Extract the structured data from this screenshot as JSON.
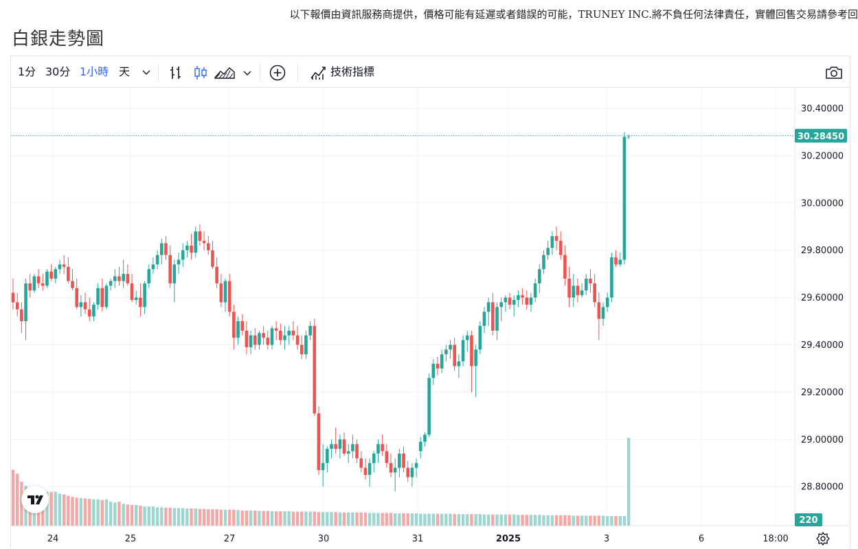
{
  "disclaimer": "以下報價由資訊服務商提供，價格可能有延遲或者錯誤的可能，TRUNEY INC.將不負任何法律責任，實體回售交易請參考回",
  "page_title": "白銀走勢圖",
  "toolbar": {
    "intervals": [
      "1分",
      "30分",
      "1小時",
      "天"
    ],
    "active_interval": "1小時",
    "indicators_label": "技術指標",
    "icons": [
      "chevron-down-icon",
      "bar-style-icon",
      "candle-style-icon",
      "area-style-icon",
      "add-circle-icon",
      "indicators-icon",
      "camera-icon"
    ]
  },
  "colors": {
    "up": "#26a69a",
    "down": "#ef5350",
    "up_volume": "#9fd5cf",
    "down_volume": "#f5a7a5",
    "grid": "#f0f3fa",
    "price_tag": "#26a69a"
  },
  "chart_data": {
    "type": "candlestick",
    "symbol_name": "白銀",
    "y_ticks": [
      "30.40000",
      "30.20000",
      "30.00000",
      "29.80000",
      "29.60000",
      "29.40000",
      "29.20000",
      "29.00000",
      "28.80000"
    ],
    "ylim": [
      28.8,
      30.4
    ],
    "x_ticks": [
      "24",
      "25",
      "27",
      "30",
      "31",
      "2025",
      "3",
      "6",
      "18:00"
    ],
    "last_price": "30.28450",
    "last_volume": "220",
    "grid": true,
    "candles": [
      [
        29.62,
        29.68,
        29.55,
        29.58
      ],
      [
        29.58,
        29.62,
        29.52,
        29.55
      ],
      [
        29.55,
        29.58,
        29.45,
        29.5
      ],
      [
        29.5,
        29.68,
        29.42,
        29.66
      ],
      [
        29.66,
        29.7,
        29.6,
        29.63
      ],
      [
        29.63,
        29.7,
        29.62,
        29.69
      ],
      [
        29.69,
        29.72,
        29.64,
        29.66
      ],
      [
        29.66,
        29.7,
        29.63,
        29.65
      ],
      [
        29.65,
        29.72,
        29.64,
        29.71
      ],
      [
        29.71,
        29.74,
        29.67,
        29.68
      ],
      [
        29.68,
        29.73,
        29.66,
        29.72
      ],
      [
        29.72,
        29.76,
        29.7,
        29.74
      ],
      [
        29.74,
        29.78,
        29.7,
        29.73
      ],
      [
        29.73,
        29.77,
        29.66,
        29.67
      ],
      [
        29.67,
        29.72,
        29.63,
        29.64
      ],
      [
        29.64,
        29.68,
        29.55,
        29.56
      ],
      [
        29.56,
        29.61,
        29.52,
        29.58
      ],
      [
        29.58,
        29.62,
        29.53,
        29.55
      ],
      [
        29.55,
        29.6,
        29.5,
        29.52
      ],
      [
        29.52,
        29.58,
        29.5,
        29.57
      ],
      [
        29.57,
        29.66,
        29.55,
        29.64
      ],
      [
        29.64,
        29.68,
        29.54,
        29.56
      ],
      [
        29.56,
        29.66,
        29.55,
        29.65
      ],
      [
        29.65,
        29.68,
        29.63,
        29.67
      ],
      [
        29.67,
        29.72,
        29.64,
        29.69
      ],
      [
        29.69,
        29.73,
        29.65,
        29.67
      ],
      [
        29.67,
        29.76,
        29.64,
        29.7
      ],
      [
        29.7,
        29.74,
        29.65,
        29.66
      ],
      [
        29.66,
        29.7,
        29.58,
        29.59
      ],
      [
        29.59,
        29.63,
        29.57,
        29.6
      ],
      [
        29.6,
        29.66,
        29.52,
        29.56
      ],
      [
        29.56,
        29.67,
        29.53,
        29.66
      ],
      [
        29.66,
        29.74,
        29.64,
        29.72
      ],
      [
        29.72,
        29.77,
        29.7,
        29.74
      ],
      [
        29.74,
        29.8,
        29.72,
        29.78
      ],
      [
        29.78,
        29.85,
        29.74,
        29.83
      ],
      [
        29.83,
        29.86,
        29.76,
        29.78
      ],
      [
        29.78,
        29.82,
        29.64,
        29.66
      ],
      [
        29.66,
        29.76,
        29.58,
        29.74
      ],
      [
        29.74,
        29.79,
        29.7,
        29.76
      ],
      [
        29.76,
        29.83,
        29.73,
        29.8
      ],
      [
        29.8,
        29.84,
        29.77,
        29.82
      ],
      [
        29.82,
        29.87,
        29.76,
        29.79
      ],
      [
        29.79,
        29.9,
        29.77,
        29.88
      ],
      [
        29.88,
        29.91,
        29.82,
        29.84
      ],
      [
        29.84,
        29.88,
        29.8,
        29.83
      ],
      [
        29.83,
        29.86,
        29.78,
        29.8
      ],
      [
        29.8,
        29.84,
        29.72,
        29.73
      ],
      [
        29.73,
        29.77,
        29.64,
        29.66
      ],
      [
        29.66,
        29.7,
        29.56,
        29.58
      ],
      [
        29.58,
        29.68,
        29.54,
        29.67
      ],
      [
        29.67,
        29.7,
        29.52,
        29.54
      ],
      [
        29.54,
        29.57,
        29.38,
        29.43
      ],
      [
        29.43,
        29.52,
        29.4,
        29.5
      ],
      [
        29.5,
        29.53,
        29.44,
        29.46
      ],
      [
        29.46,
        29.5,
        29.36,
        29.39
      ],
      [
        29.39,
        29.46,
        29.36,
        29.44
      ],
      [
        29.44,
        29.47,
        29.38,
        29.4
      ],
      [
        29.4,
        29.46,
        29.38,
        29.45
      ],
      [
        29.45,
        29.48,
        29.4,
        29.43
      ],
      [
        29.43,
        29.46,
        29.38,
        29.4
      ],
      [
        29.4,
        29.48,
        29.38,
        29.47
      ],
      [
        29.47,
        29.5,
        29.42,
        29.46
      ],
      [
        29.46,
        29.49,
        29.4,
        29.42
      ],
      [
        29.42,
        29.48,
        29.38,
        29.44
      ],
      [
        29.44,
        29.48,
        29.4,
        29.46
      ],
      [
        29.46,
        29.5,
        29.42,
        29.44
      ],
      [
        29.44,
        29.48,
        29.38,
        29.4
      ],
      [
        29.4,
        29.44,
        29.34,
        29.36
      ],
      [
        29.36,
        29.46,
        29.34,
        29.44
      ],
      [
        29.44,
        29.5,
        29.42,
        29.48
      ],
      [
        29.48,
        29.51,
        29.1,
        29.11
      ],
      [
        29.11,
        29.14,
        28.85,
        28.87
      ],
      [
        28.87,
        28.98,
        28.8,
        28.9
      ],
      [
        28.9,
        28.97,
        28.86,
        28.96
      ],
      [
        28.96,
        29.0,
        28.92,
        28.98
      ],
      [
        28.98,
        29.05,
        28.94,
        28.96
      ],
      [
        28.96,
        29.02,
        28.92,
        29.0
      ],
      [
        29.0,
        29.03,
        28.93,
        28.94
      ],
      [
        28.94,
        28.98,
        28.9,
        28.95
      ],
      [
        28.95,
        29.02,
        28.92,
        28.98
      ],
      [
        28.98,
        29.0,
        28.9,
        28.92
      ],
      [
        28.92,
        28.95,
        28.86,
        28.88
      ],
      [
        28.88,
        28.92,
        28.83,
        28.85
      ],
      [
        28.85,
        28.92,
        28.8,
        28.9
      ],
      [
        28.9,
        28.95,
        28.86,
        28.94
      ],
      [
        28.94,
        29.0,
        28.9,
        28.98
      ],
      [
        28.98,
        29.02,
        28.93,
        28.95
      ],
      [
        28.95,
        28.98,
        28.88,
        28.9
      ],
      [
        28.9,
        28.94,
        28.84,
        28.86
      ],
      [
        28.86,
        28.92,
        28.78,
        28.88
      ],
      [
        28.88,
        28.96,
        28.84,
        28.94
      ],
      [
        28.94,
        28.97,
        28.86,
        28.88
      ],
      [
        28.88,
        28.91,
        28.82,
        28.84
      ],
      [
        28.84,
        28.9,
        28.8,
        28.88
      ],
      [
        28.88,
        28.92,
        28.84,
        28.9
      ],
      [
        28.95,
        29.01,
        28.92,
        28.99
      ],
      [
        28.99,
        29.03,
        28.97,
        29.02
      ],
      [
        29.02,
        29.28,
        29.01,
        29.26
      ],
      [
        29.26,
        29.34,
        29.23,
        29.32
      ],
      [
        29.32,
        29.35,
        29.27,
        29.3
      ],
      [
        29.3,
        29.38,
        29.28,
        29.36
      ],
      [
        29.36,
        29.4,
        29.33,
        29.38
      ],
      [
        29.38,
        29.42,
        29.34,
        29.4
      ],
      [
        29.4,
        29.43,
        29.29,
        29.31
      ],
      [
        29.31,
        29.36,
        29.26,
        29.33
      ],
      [
        29.33,
        29.44,
        29.31,
        29.42
      ],
      [
        29.42,
        29.46,
        29.37,
        29.44
      ],
      [
        29.44,
        29.46,
        29.2,
        29.31
      ],
      [
        29.31,
        29.4,
        29.18,
        29.38
      ],
      [
        29.38,
        29.5,
        29.36,
        29.48
      ],
      [
        29.48,
        29.56,
        29.45,
        29.54
      ],
      [
        29.54,
        29.6,
        29.48,
        29.58
      ],
      [
        29.58,
        29.62,
        29.44,
        29.46
      ],
      [
        29.46,
        29.58,
        29.42,
        29.56
      ],
      [
        29.56,
        29.6,
        29.5,
        29.58
      ],
      [
        29.58,
        29.61,
        29.54,
        29.6
      ],
      [
        29.6,
        29.62,
        29.55,
        29.57
      ],
      [
        29.57,
        29.61,
        29.52,
        29.59
      ],
      [
        29.59,
        29.63,
        29.56,
        29.61
      ],
      [
        29.61,
        29.64,
        29.57,
        29.6
      ],
      [
        29.6,
        29.63,
        29.55,
        29.57
      ],
      [
        29.57,
        29.62,
        29.54,
        29.6
      ],
      [
        29.6,
        29.68,
        29.58,
        29.66
      ],
      [
        29.66,
        29.74,
        29.62,
        29.72
      ],
      [
        29.72,
        29.8,
        29.7,
        29.78
      ],
      [
        29.78,
        29.84,
        29.76,
        29.81
      ],
      [
        29.81,
        29.88,
        29.78,
        29.86
      ],
      [
        29.86,
        29.9,
        29.8,
        29.84
      ],
      [
        29.84,
        29.88,
        29.76,
        29.78
      ],
      [
        29.78,
        29.82,
        29.65,
        29.68
      ],
      [
        29.68,
        29.73,
        29.56,
        29.6
      ],
      [
        29.6,
        29.7,
        29.56,
        29.65
      ],
      [
        29.65,
        29.68,
        29.58,
        29.61
      ],
      [
        29.61,
        29.66,
        29.6,
        29.63
      ],
      [
        29.63,
        29.7,
        29.61,
        29.68
      ],
      [
        29.68,
        29.72,
        29.62,
        29.66
      ],
      [
        29.66,
        29.7,
        29.56,
        29.58
      ],
      [
        29.58,
        29.62,
        29.42,
        29.51
      ],
      [
        29.51,
        29.58,
        29.48,
        29.56
      ],
      [
        29.56,
        29.62,
        29.54,
        29.6
      ],
      [
        29.6,
        29.79,
        29.58,
        29.77
      ],
      [
        29.77,
        29.8,
        29.73,
        29.74
      ],
      [
        29.74,
        29.79,
        29.73,
        29.76
      ],
      [
        29.76,
        30.3,
        29.74,
        30.28
      ],
      [
        30.28,
        30.29,
        30.27,
        30.28
      ]
    ],
    "volumes": [
      140,
      130,
      110,
      100,
      95,
      92,
      88,
      86,
      85,
      85,
      85,
      80,
      78,
      75,
      72,
      70,
      69,
      68,
      67,
      66,
      66,
      64,
      66,
      60,
      58,
      60,
      55,
      53,
      52,
      52,
      50,
      48,
      48,
      48,
      46,
      46,
      45,
      45,
      44,
      44,
      44,
      43,
      43,
      43,
      42,
      42,
      41,
      41,
      41,
      40,
      40,
      40,
      40,
      39,
      38,
      38,
      38,
      38,
      37,
      37,
      37,
      36,
      36,
      36,
      36,
      36,
      35,
      35,
      35,
      35,
      35,
      35,
      34,
      34,
      34,
      34,
      34,
      33,
      33,
      33,
      33,
      33,
      33,
      33,
      32,
      32,
      32,
      32,
      32,
      32,
      31,
      31,
      31,
      31,
      31,
      31,
      30,
      30,
      30,
      30,
      30,
      30,
      30,
      30,
      29,
      29,
      29,
      29,
      29,
      29,
      29,
      28,
      28,
      28,
      28,
      28,
      28,
      28,
      28,
      27,
      27,
      27,
      27,
      27,
      27,
      26,
      26,
      26,
      26,
      26,
      26,
      26,
      25,
      25,
      25,
      25,
      25,
      25,
      25,
      25,
      24,
      24,
      24,
      24,
      24,
      220
    ]
  }
}
